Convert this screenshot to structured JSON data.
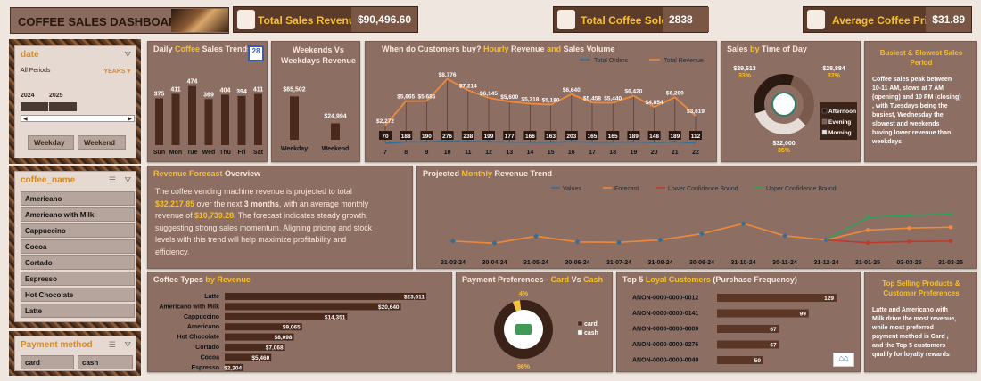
{
  "header": {
    "title": "COFFEE SALES DASHBOARD"
  },
  "kpis": [
    {
      "label": "Total Sales Revenue",
      "value": "$90,496.60"
    },
    {
      "label": "Total Coffee Sold",
      "value": "2838"
    },
    {
      "label": "Average Coffee Price",
      "value": "$31.89"
    }
  ],
  "date_slicer": {
    "title": "date",
    "all_periods": "All Periods",
    "years_label": "YEARS",
    "years": [
      "2024",
      "2025"
    ],
    "buttons": [
      "Weekday",
      "Weekend"
    ]
  },
  "coffee_slicer": {
    "title": "coffee_name",
    "items": [
      "Americano",
      "Americano with Milk",
      "Cappuccino",
      "Cocoa",
      "Cortado",
      "Espresso",
      "Hot Chocolate",
      "Latte"
    ]
  },
  "payment_slicer": {
    "title": "Payment method",
    "items": [
      "card",
      "cash"
    ]
  },
  "daily": {
    "title_a": "Daily ",
    "title_b": "Coffee",
    "title_c": " Sales Trends"
  },
  "weekdays": {
    "title": "Weekends Vs Weekdays Revenue"
  },
  "hourly": {
    "title_a": "When do Customers buy?",
    "title_b": " Hourly ",
    "title_c": " Revenue ",
    "title_d": "and",
    "title_e": " Sales Volume"
  },
  "tod": {
    "title_a": "Sales ",
    "title_b": " by ",
    "title_c": "Time of Day"
  },
  "insight1": {
    "title": "Busiest & Slowest Sales Period",
    "lines": [
      "Coffee sales peak between",
      "10-11 AM, slows at 7 AM",
      "(opening) and 10 PM (closing)",
      ", with Tuesdays being the",
      "busiest, Wednesday the",
      "slowest and weekends",
      "having lower revenue  than",
      "weekdays"
    ]
  },
  "forecast": {
    "title_a": "Revenue Forecast",
    "title_b": " Overview",
    "p1": "The coffee vending machine revenue is projected to total",
    "p2a": "$32,217.85",
    "p2b": " over the next ",
    "p2c": "3 months",
    "p2d": ", with an average monthly",
    "p3a": "revenue of ",
    "p3b": "$10,739.28",
    "p3c": ". The forecast indicates steady growth,",
    "p4": "suggesting strong sales momentum. Aligning pricing and stock",
    "p5": "levels with this trend will help maximize profitability and",
    "p6": "efficiency."
  },
  "projected": {
    "title_a": "Projected ",
    "title_b": " Monthly ",
    "title_c": " Revenue Trend"
  },
  "types": {
    "title_a": "Coffee Types",
    "title_b": " by Revenue"
  },
  "payment": {
    "title_a": "Payment Preferences -",
    "title_b": " Card ",
    "title_c": "Vs",
    "title_d": " Cash"
  },
  "loyal": {
    "title_a": "Top 5",
    "title_b": " Loyal Customers",
    "title_c": " (Purchase Frequency)"
  },
  "insight2": {
    "title": "Top Selling Products & Customer Preferences",
    "lines": [
      "Latte and Americano with",
      "Milk drive the most revenue,",
      "while most preferred",
      "payment method is Card ,",
      "and the Top 5 customers",
      "qualify for loyalty rewards"
    ]
  },
  "colors": {
    "bar": "#4a2a1d",
    "accent": "#f7c02b",
    "panel": "#8d6e63",
    "orange": "#ee8a3a",
    "blue": "#2f6f9a",
    "red": "#c0392b",
    "green": "#2ea35a"
  },
  "chart_data": [
    {
      "id": "daily",
      "type": "bar",
      "categories": [
        "Sun",
        "Mon",
        "Tue",
        "Wed",
        "Thu",
        "Fri",
        "Sat"
      ],
      "values": [
        375,
        411,
        474,
        369,
        404,
        394,
        411
      ]
    },
    {
      "id": "weekdays",
      "type": "bar",
      "categories": [
        "Weekday",
        "Weekend"
      ],
      "values": [
        65502,
        24994
      ],
      "labels": [
        "$65,502",
        "$24,994"
      ]
    },
    {
      "id": "hourly",
      "type": "line",
      "x": [
        7,
        8,
        9,
        10,
        11,
        12,
        13,
        14,
        15,
        16,
        17,
        18,
        19,
        20,
        21,
        22
      ],
      "series": [
        {
          "name": "Total Orders",
          "values": [
            70,
            188,
            190,
            276,
            238,
            199,
            177,
            166,
            163,
            203,
            165,
            165,
            189,
            148,
            189,
            112
          ]
        },
        {
          "name": "Total Revenue",
          "values": [
            2272,
            5665,
            5685,
            8776,
            7214,
            6145,
            5600,
            5318,
            5180,
            6640,
            5458,
            5440,
            6420,
            4854,
            6209,
            3619
          ],
          "labels": [
            "$2,272",
            "$5,665",
            "$5,685",
            "$8,776",
            "$7,214",
            "$6,145",
            "$5,600",
            "$5,318",
            "$5,180",
            "$6,640",
            "$5,458",
            "$5,440",
            "$6,420",
            "$4,854",
            "$6,209",
            "$3,619"
          ]
        }
      ]
    },
    {
      "id": "tod",
      "type": "pie",
      "categories": [
        "Afternoon",
        "Evening",
        "Morning"
      ],
      "values": [
        32000,
        28884,
        29613
      ],
      "labels": [
        "$32,000",
        "$28,884",
        "$29,613"
      ],
      "percents": [
        "35%",
        "32%",
        "33%"
      ]
    },
    {
      "id": "projected",
      "type": "line",
      "x": [
        "31-03-24",
        "30-04-24",
        "31-05-24",
        "30-06-24",
        "31-07-24",
        "31-08-24",
        "30-09-24",
        "31-10-24",
        "30-11-24",
        "31-12-24",
        "31-01-25",
        "03-03-25",
        "31-03-25"
      ],
      "series": [
        {
          "name": "Values",
          "values": [
            7200,
            6700,
            8400,
            7000,
            6900,
            7500,
            9000,
            11500,
            8500,
            7500,
            null,
            null,
            null
          ]
        },
        {
          "name": "Forecast",
          "values": [
            null,
            null,
            null,
            null,
            null,
            null,
            null,
            null,
            null,
            7500,
            9900,
            10400,
            10600
          ]
        },
        {
          "name": "Lower Confidence Bound",
          "values": [
            null,
            null,
            null,
            null,
            null,
            null,
            null,
            null,
            null,
            7500,
            6800,
            7100,
            7200
          ]
        },
        {
          "name": "Upper Confidence Bound",
          "values": [
            null,
            null,
            null,
            null,
            null,
            null,
            null,
            null,
            null,
            7500,
            13000,
            13500,
            13800
          ]
        }
      ]
    },
    {
      "id": "types",
      "type": "bar",
      "categories": [
        "Latte",
        "Americano with Milk",
        "Cappuccino",
        "Americano",
        "Hot Chocolate",
        "Cortado",
        "Cocoa",
        "Espresso"
      ],
      "values": [
        23611,
        20640,
        14351,
        9065,
        8098,
        7068,
        5460,
        2204
      ],
      "labels": [
        "$23,611",
        "$20,640",
        "$14,351",
        "$9,065",
        "$8,098",
        "$7,068",
        "$5,460",
        "$2,204"
      ]
    },
    {
      "id": "payment",
      "type": "pie",
      "categories": [
        "card",
        "cash"
      ],
      "values": [
        96,
        4
      ],
      "labels": [
        "96%",
        "4%"
      ]
    },
    {
      "id": "loyal",
      "type": "bar",
      "categories": [
        "ANON-0000-0000-0012",
        "ANON-0000-0000-0141",
        "ANON-0000-0000-0009",
        "ANON-0000-0000-0276",
        "ANON-0000-0000-0040"
      ],
      "values": [
        129,
        99,
        67,
        67,
        50
      ]
    }
  ]
}
